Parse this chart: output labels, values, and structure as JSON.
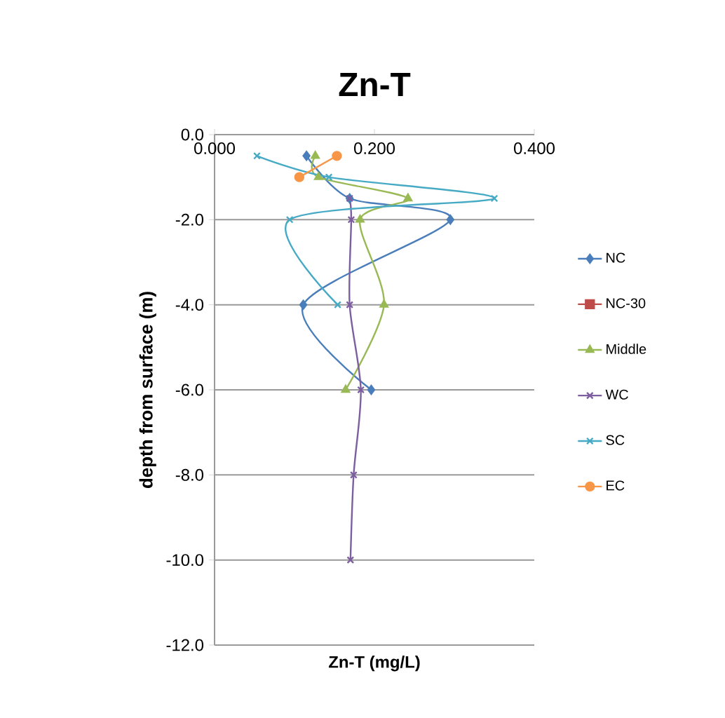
{
  "chart_data": {
    "type": "line",
    "title": "Zn-T",
    "xlabel": "Zn-T (mg/L)",
    "ylabel": "depth from surface (m)",
    "xlim": [
      0,
      0.4
    ],
    "xticks": [
      {
        "value": 0,
        "label": "0.000"
      },
      {
        "value": 0.2,
        "label": "0.200"
      },
      {
        "value": 0.4,
        "label": "0.400"
      }
    ],
    "ylim": [
      -12,
      0
    ],
    "yticks": [
      {
        "value": -12,
        "label": "-12.0"
      },
      {
        "value": -10,
        "label": "-10.0"
      },
      {
        "value": -8,
        "label": "-8.0"
      },
      {
        "value": -6,
        "label": "-6.0"
      },
      {
        "value": -4,
        "label": "-4.0"
      },
      {
        "value": -2,
        "label": "-2.0"
      },
      {
        "value": 0,
        "label": "0.0"
      }
    ],
    "grid": "y",
    "legend": "right",
    "series": [
      {
        "name": "NC",
        "color": "#4a7ebb",
        "marker": "diamond",
        "x": [
          0.115,
          0.169,
          0.295,
          0.111,
          0.196
        ],
        "values": [
          -0.5,
          -1.5,
          -2.0,
          -4.0,
          -6.0
        ]
      },
      {
        "name": "NC-30",
        "color": "#be4b48",
        "marker": "square"
      },
      {
        "name": "Middle",
        "color": "#98b954",
        "marker": "triangle",
        "x": [
          0.126,
          0.13,
          0.242,
          0.182,
          0.212,
          0.164
        ],
        "values": [
          -0.5,
          -1.0,
          -1.5,
          -2.0,
          -4.0,
          -6.0
        ]
      },
      {
        "name": "WC",
        "color": "#7d5fa0",
        "marker": "cross",
        "x": [
          0.169,
          0.171,
          0.169,
          0.183,
          0.174,
          0.17
        ],
        "values": [
          -1.5,
          -2.0,
          -4.0,
          -6.0,
          -8.0,
          -10.0
        ]
      },
      {
        "name": "SC",
        "color": "#46aac5",
        "marker": "cross",
        "x": [
          0.053,
          0.143,
          0.35,
          0.094,
          0.154
        ],
        "values": [
          -0.5,
          -1.0,
          -1.5,
          -2.0,
          -4.0
        ]
      },
      {
        "name": "EC",
        "color": "#f79646",
        "marker": "circle",
        "x": [
          0.153,
          0.106
        ],
        "values": [
          -0.5,
          -1.0
        ]
      }
    ]
  }
}
